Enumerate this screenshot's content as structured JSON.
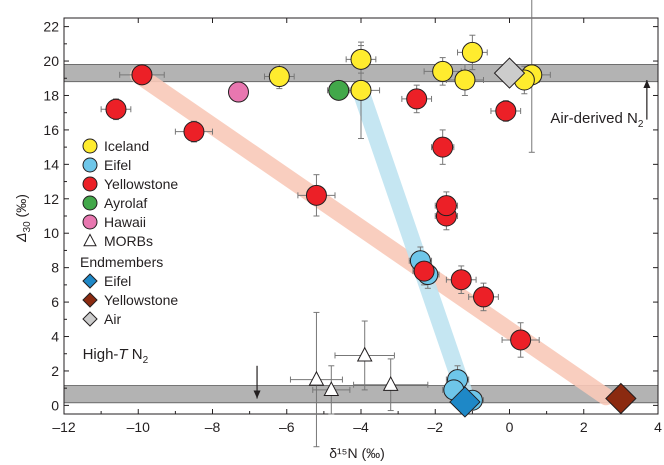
{
  "chart_data": {
    "type": "scatter",
    "xlabel": "δ¹⁵N (‰)",
    "ylabel_main": "Δ",
    "ylabel_sub": "30",
    "ylabel_unit": " (‰)",
    "xlim": [
      -12,
      4
    ],
    "ylim": [
      -0.5,
      22.5
    ],
    "x_ticks": [
      -12,
      -10,
      -8,
      -6,
      -4,
      -2,
      0,
      2,
      4
    ],
    "y_ticks": [
      0,
      2,
      4,
      6,
      8,
      10,
      12,
      14,
      16,
      18,
      20,
      22
    ],
    "grid": false,
    "legend_position": "left",
    "bands": [
      {
        "y0": 18.8,
        "y1": 19.8,
        "color": "#b3b3b3"
      },
      {
        "y0": 0.15,
        "y1": 1.15,
        "color": "#b3b3b3"
      }
    ],
    "trend_lines": [
      {
        "color": "#f8c9b8",
        "points": [
          [
            -10,
            19.2
          ],
          [
            2.6,
            0.5
          ]
        ]
      },
      {
        "color": "#bfe3f1",
        "points": [
          [
            -4,
            18.2
          ],
          [
            -1.2,
            0.6
          ]
        ]
      }
    ],
    "annotations": [
      {
        "text": "Air-derived N",
        "sub": "2",
        "x": 1.1,
        "y": 16.4,
        "arrow": [
          [
            3.7,
            16.6
          ],
          [
            3.7,
            18.9
          ]
        ]
      },
      {
        "text": "High-",
        "italic": "T",
        "rest": " N",
        "sub": "2",
        "x": -11.5,
        "y": 2.7,
        "arrow": [
          [
            -6.8,
            2.3
          ],
          [
            -6.8,
            0.4
          ]
        ]
      }
    ],
    "legend": {
      "groups": [
        {
          "label": "Iceland",
          "marker": "circle",
          "color": "#ffec2e"
        },
        {
          "label": "Eifel",
          "marker": "circle",
          "color": "#6ec6e9"
        },
        {
          "label": "Yellowstone",
          "marker": "circle",
          "color": "#ec2027"
        },
        {
          "label": "Ayrolaf",
          "marker": "circle",
          "color": "#42a84a"
        },
        {
          "label": "Hawaii",
          "marker": "circle",
          "color": "#e877b0"
        },
        {
          "label": "MORBs",
          "marker": "triangle",
          "color": "#ffffff"
        }
      ],
      "endmember_title": "Endmembers",
      "endmembers": [
        {
          "label": "Eifel",
          "marker": "diamond",
          "color": "#1e88c7"
        },
        {
          "label": "Yellowstone",
          "marker": "diamond",
          "color": "#8b2a10"
        },
        {
          "label": "Air",
          "marker": "diamond",
          "color": "#cccccc"
        }
      ]
    },
    "series": [
      {
        "name": "Iceland",
        "marker": "circle",
        "color": "#ffec2e",
        "points": [
          {
            "x": -6.2,
            "y": 19.1,
            "xerr": 0.4,
            "yerr": 0.7
          },
          {
            "x": -4.0,
            "y": 20.1,
            "xerr": 0.4,
            "yerr": 0.8
          },
          {
            "x": -4.0,
            "y": 18.3,
            "xerr": 0.5,
            "yerr": 2.8
          },
          {
            "x": -1.8,
            "y": 19.4,
            "xerr": 0.5,
            "yerr": 0.8
          },
          {
            "x": -1.0,
            "y": 20.5,
            "xerr": 0.4,
            "yerr": 1.0
          },
          {
            "x": -1.2,
            "y": 18.9,
            "xerr": 0.5,
            "yerr": 0.9
          },
          {
            "x": 0.6,
            "y": 19.2,
            "xerr": 0.5,
            "yerr": 4.5
          },
          {
            "x": 0.4,
            "y": 18.9,
            "xerr": 0.4,
            "yerr": 0.8
          }
        ]
      },
      {
        "name": "Eifel",
        "marker": "circle",
        "color": "#6ec6e9",
        "points": [
          {
            "x": -2.4,
            "y": 8.4,
            "xerr": 0.3,
            "yerr": 0.8
          },
          {
            "x": -2.2,
            "y": 7.6,
            "xerr": 0.3,
            "yerr": 0.8
          },
          {
            "x": -1.4,
            "y": 1.5,
            "xerr": 0.3,
            "yerr": 0.8
          },
          {
            "x": -1.5,
            "y": 0.9,
            "xerr": 0.3,
            "yerr": 0.6
          },
          {
            "x": -1.0,
            "y": 0.3,
            "xerr": 0.3,
            "yerr": 0.5
          }
        ]
      },
      {
        "name": "Yellowstone",
        "marker": "circle",
        "color": "#ec2027",
        "points": [
          {
            "x": -9.9,
            "y": 19.2,
            "xerr": 0.6,
            "yerr": 0.4
          },
          {
            "x": -10.6,
            "y": 17.2,
            "xerr": 0.4,
            "yerr": 0.6
          },
          {
            "x": -8.5,
            "y": 15.9,
            "xerr": 0.5,
            "yerr": 0.6
          },
          {
            "x": -5.2,
            "y": 12.2,
            "xerr": 0.5,
            "yerr": 1.2
          },
          {
            "x": -2.5,
            "y": 17.8,
            "xerr": 0.4,
            "yerr": 0.8
          },
          {
            "x": -0.1,
            "y": 17.1,
            "xerr": 0.4,
            "yerr": 0.6
          },
          {
            "x": -1.8,
            "y": 15.0,
            "xerr": 0.3,
            "yerr": 1.0
          },
          {
            "x": -1.7,
            "y": 11.0,
            "xerr": 0.3,
            "yerr": 0.8
          },
          {
            "x": -1.7,
            "y": 11.6,
            "xerr": 0.3,
            "yerr": 0.8
          },
          {
            "x": -2.3,
            "y": 7.8,
            "xerr": 0.3,
            "yerr": 0.8
          },
          {
            "x": -1.3,
            "y": 7.3,
            "xerr": 0.4,
            "yerr": 0.8
          },
          {
            "x": -0.7,
            "y": 6.3,
            "xerr": 0.4,
            "yerr": 0.8
          },
          {
            "x": 0.3,
            "y": 3.8,
            "xerr": 0.5,
            "yerr": 1.0
          }
        ]
      },
      {
        "name": "Ayrolaf",
        "marker": "circle",
        "color": "#42a84a",
        "points": [
          {
            "x": -4.6,
            "y": 18.3,
            "xerr": 0.3,
            "yerr": 0.5
          }
        ]
      },
      {
        "name": "Hawaii",
        "marker": "circle",
        "color": "#e877b0",
        "points": [
          {
            "x": -7.3,
            "y": 18.2,
            "xerr": 0.0,
            "yerr": 0.0
          }
        ]
      },
      {
        "name": "MORBs",
        "marker": "triangle",
        "color": "#ffffff",
        "points": [
          {
            "x": -5.2,
            "y": 1.5,
            "xerr": 0.7,
            "yerr": 3.9
          },
          {
            "x": -4.8,
            "y": 0.9,
            "xerr": 0.5,
            "yerr": 1.4
          },
          {
            "x": -3.9,
            "y": 2.9,
            "xerr": 0.8,
            "yerr": 2.0
          },
          {
            "x": -3.2,
            "y": 1.2,
            "xerr": 1.0,
            "yerr": 1.5
          }
        ]
      },
      {
        "name": "Eifel endmember",
        "marker": "diamond",
        "color": "#1e88c7",
        "points": [
          {
            "x": -1.2,
            "y": 0.2
          }
        ]
      },
      {
        "name": "Yellowstone endmember",
        "marker": "diamond",
        "color": "#8b2a10",
        "points": [
          {
            "x": 3.0,
            "y": 0.4
          }
        ]
      },
      {
        "name": "Air endmember",
        "marker": "diamond",
        "color": "#cccccc",
        "points": [
          {
            "x": 0.0,
            "y": 19.3
          }
        ]
      }
    ]
  }
}
